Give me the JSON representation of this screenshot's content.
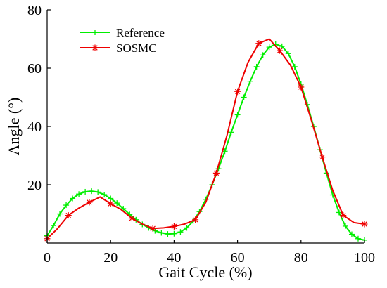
{
  "chart_data": {
    "type": "line",
    "title": "",
    "xlabel": "Gait Cycle (%)",
    "ylabel": "Angle (°)",
    "xlim": [
      0,
      100
    ],
    "ylim": [
      0,
      80
    ],
    "xticks": [
      0,
      20,
      40,
      60,
      80,
      100
    ],
    "yticks": [
      20,
      40,
      60,
      80
    ],
    "grid": false,
    "legend": "top-left",
    "series": [
      {
        "name": "Reference",
        "color": "#00ee00",
        "marker": "plus",
        "x": [
          0,
          2,
          4,
          6,
          8,
          10,
          12,
          14,
          16,
          18,
          20,
          22,
          24,
          26,
          28,
          30,
          32,
          34,
          36,
          38,
          40,
          42,
          44,
          46,
          48,
          50,
          52,
          54,
          56,
          58,
          60,
          62,
          64,
          66,
          68,
          70,
          72,
          74,
          76,
          78,
          80,
          82,
          84,
          86,
          88,
          90,
          92,
          94,
          96,
          98,
          100
        ],
        "y": [
          2.5,
          6,
          10,
          13,
          15.3,
          16.8,
          17.6,
          17.8,
          17.5,
          16.6,
          15.3,
          13.7,
          11.8,
          9.8,
          8,
          6.4,
          5.2,
          4.2,
          3.5,
          3.1,
          3.2,
          3.8,
          5.2,
          7.5,
          10.8,
          15,
          20,
          25.5,
          31.5,
          38,
          44,
          50,
          55.5,
          60.5,
          64.5,
          67.2,
          68.2,
          67.5,
          65,
          60.5,
          54.5,
          47.5,
          40,
          32,
          24,
          16.5,
          10.5,
          5.8,
          3,
          1.5,
          1
        ]
      },
      {
        "name": "SOSMC",
        "color": "#ee0000",
        "marker": "star",
        "x": [
          0,
          3.3,
          6.7,
          10,
          13.3,
          16.7,
          20,
          23.3,
          26.7,
          30,
          33.3,
          36.7,
          40,
          43.3,
          46.7,
          50,
          53.3,
          56.7,
          60,
          63.3,
          66.7,
          70,
          73.3,
          76.7,
          80,
          83.3,
          86.7,
          90,
          93.3,
          96.7,
          100
        ],
        "y": [
          1.5,
          5,
          9.5,
          12,
          14,
          15.8,
          13.5,
          11.5,
          8.5,
          6.5,
          5,
          5.2,
          5.7,
          6.5,
          8,
          14,
          24,
          37,
          52,
          62,
          68.5,
          70,
          66,
          61,
          53.5,
          42,
          29.5,
          18,
          9.5,
          7,
          6.5
        ],
        "markers_x": [
          0,
          6.7,
          13.3,
          20,
          26.7,
          33.3,
          40,
          46.7,
          53.3,
          60,
          66.7,
          73.3,
          80,
          86.7,
          93.3,
          100
        ],
        "markers_y": [
          1.5,
          9.5,
          14,
          13.5,
          8.5,
          5,
          5.7,
          8,
          24,
          52,
          68.5,
          66,
          53.5,
          29.5,
          9.5,
          6.5
        ]
      }
    ]
  }
}
